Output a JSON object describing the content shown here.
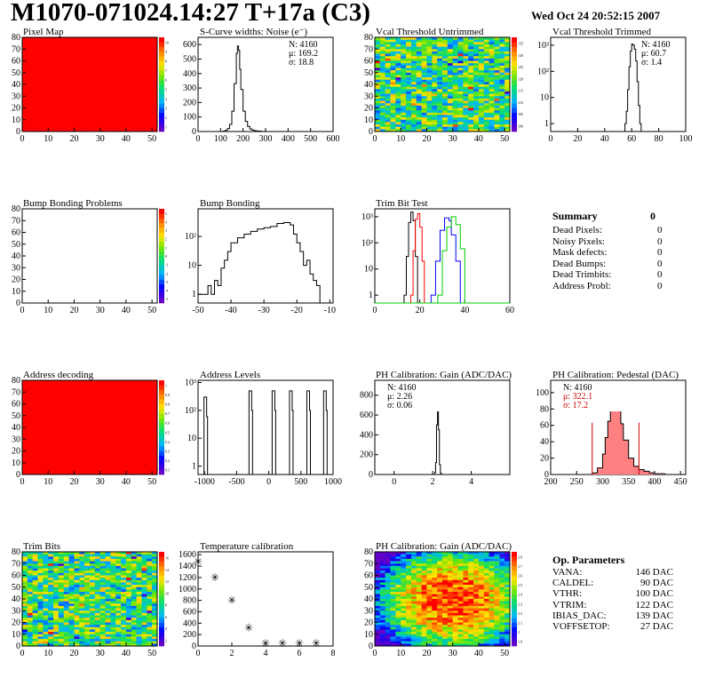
{
  "header": {
    "title": "M1070-071024.14:27 T+17a (C3)",
    "datetime": "Wed Oct 24 20:52:15 2007"
  },
  "colors": {
    "map_red": "#ff0000",
    "histo_line": "#000000",
    "trim_red": "#ff0000",
    "trim_blue": "#0000ff",
    "trim_green": "#00cc00",
    "pedestal_fill": "#ff8080",
    "pedestal_red": "#cc0000"
  },
  "panels": {
    "pixel_map": {
      "title": "Pixel Map"
    },
    "scurve": {
      "title": "S-Curve widths: Noise (e⁻)",
      "stats": [
        "N: 4160",
        "μ: 169.2",
        "σ: 18.8"
      ]
    },
    "vcal_untrimmed": {
      "title": "Vcal Threshold Untrimmed"
    },
    "vcal_trimmed": {
      "title": "Vcal Threshold Trimmed",
      "stats": [
        "N: 4160",
        "μ: 60.7",
        "σ:  1.4"
      ]
    },
    "bump_problems": {
      "title": "Bump Bonding Problems"
    },
    "bump_bonding": {
      "title": "Bump Bonding"
    },
    "trim_bit_test": {
      "title": "Trim Bit Test"
    },
    "address_decoding": {
      "title": "Address decoding"
    },
    "address_levels": {
      "title": "Address Levels"
    },
    "ph_gain": {
      "title": "PH Calibration: Gain (ADC/DAC)",
      "stats": [
        "N: 4160",
        "μ: 2.26",
        "σ: 0.06"
      ]
    },
    "ph_pedestal": {
      "title": "PH Calibration: Pedestal (DAC)",
      "stats": [
        "N: 4160",
        "μ: 322.1",
        "σ: 17.2"
      ]
    },
    "trim_bits": {
      "title": "Trim Bits"
    },
    "temperature": {
      "title": "Temperature calibration"
    },
    "ph_gain_map": {
      "title": "PH Calibration: Gain (ADC/DAC)"
    }
  },
  "summary": {
    "title": "Summary",
    "total": "0",
    "rows": [
      {
        "label": "Dead Pixels:",
        "value": "0"
      },
      {
        "label": "Noisy Pixels:",
        "value": "0"
      },
      {
        "label": "Mask defects:",
        "value": "0"
      },
      {
        "label": "Dead Bumps:",
        "value": "0"
      },
      {
        "label": "Dead Trimbits:",
        "value": "0"
      },
      {
        "label": "Address Probl:",
        "value": "0"
      }
    ]
  },
  "op_parameters": {
    "title": "Op. Parameters",
    "rows": [
      {
        "label": "VANA:",
        "value": "146 DAC"
      },
      {
        "label": "CALDEL:",
        "value": "90 DAC"
      },
      {
        "label": "VTHR:",
        "value": "100 DAC"
      },
      {
        "label": "VTRIM:",
        "value": "122 DAC"
      },
      {
        "label": "IBIAS_DAC:",
        "value": "139 DAC"
      },
      {
        "label": "VOFFSETOP:",
        "value": "27 DAC"
      }
    ]
  },
  "chart_data": [
    {
      "id": "pixel_map",
      "type": "heatmap",
      "title": "Pixel Map",
      "xlim": [
        0,
        52
      ],
      "ylim": [
        0,
        80
      ],
      "xticks": [
        "0",
        "10",
        "20",
        "30",
        "40",
        "50"
      ],
      "yticks": [
        "0",
        "10",
        "20",
        "30",
        "40",
        "50",
        "60",
        "70",
        "80"
      ],
      "uniform_fill": "#ff0000",
      "colorbar_ticks": [
        "1",
        "2",
        "3",
        "4",
        "5",
        "6",
        "7",
        "8",
        "9",
        "10"
      ]
    },
    {
      "id": "scurve",
      "type": "line",
      "title": "S-Curve widths: Noise (e⁻)",
      "xlim": [
        0,
        600
      ],
      "ylim": [
        0,
        650
      ],
      "xticks": [
        "0",
        "100",
        "200",
        "300",
        "400",
        "500",
        "600"
      ],
      "yticks": [
        "0",
        "100",
        "200",
        "300",
        "400",
        "500",
        "600"
      ],
      "x": [
        100,
        110,
        120,
        130,
        140,
        150,
        160,
        170,
        175,
        180,
        185,
        190,
        200,
        210,
        220,
        230,
        240,
        250,
        260,
        280,
        300
      ],
      "y": [
        0,
        2,
        8,
        20,
        50,
        140,
        330,
        540,
        590,
        560,
        430,
        290,
        140,
        70,
        35,
        18,
        10,
        5,
        3,
        1,
        0
      ]
    },
    {
      "id": "vcal_untrimmed",
      "type": "heatmap",
      "title": "Vcal Threshold Untrimmed",
      "xlim": [
        0,
        52
      ],
      "ylim": [
        0,
        80
      ],
      "xticks": [
        "0",
        "10",
        "20",
        "30",
        "40",
        "50"
      ],
      "yticks": [
        "0",
        "10",
        "20",
        "30",
        "40",
        "50",
        "60",
        "70",
        "80"
      ],
      "colorbar_ticks": [
        "100",
        "105",
        "110",
        "115",
        "120",
        "125",
        "130",
        "135"
      ]
    },
    {
      "id": "vcal_trimmed",
      "type": "line",
      "title": "Vcal Threshold Trimmed",
      "yscale": "log",
      "xlim": [
        0,
        100
      ],
      "ylim": [
        0.5,
        2000
      ],
      "xticks": [
        "0",
        "20",
        "40",
        "60",
        "80",
        "100"
      ],
      "yticks": [
        "1",
        "10",
        "10²",
        "10³"
      ],
      "x": [
        55,
        56,
        57,
        58,
        59,
        60,
        61,
        62,
        63,
        64,
        65,
        66,
        67
      ],
      "y": [
        1,
        3,
        20,
        150,
        600,
        1100,
        1000,
        700,
        250,
        40,
        5,
        1,
        0
      ]
    },
    {
      "id": "bump_problems",
      "type": "heatmap",
      "title": "Bump Bonding Problems",
      "xlim": [
        0,
        52
      ],
      "ylim": [
        0,
        80
      ],
      "xticks": [
        "0",
        "10",
        "20",
        "30",
        "40",
        "50"
      ],
      "yticks": [
        "0",
        "10",
        "20",
        "30",
        "40",
        "50",
        "60",
        "70",
        "80"
      ],
      "uniform_fill": "#ffffff",
      "colorbar_ticks": [
        "-5",
        "-4",
        "-3",
        "-2",
        "-1",
        "0",
        "1",
        "2",
        "3",
        "4",
        "5"
      ]
    },
    {
      "id": "bump_bonding",
      "type": "line",
      "title": "Bump Bonding",
      "yscale": "log",
      "xlim": [
        -50,
        -9
      ],
      "ylim": [
        0.5,
        900
      ],
      "xticks": [
        "-50",
        "-40",
        "-30",
        "-20",
        "-10"
      ],
      "yticks": [
        "1",
        "10",
        "10²"
      ],
      "x": [
        -50,
        -48,
        -47,
        -46,
        -45,
        -44,
        -43,
        -42,
        -41,
        -40,
        -38,
        -36,
        -34,
        -32,
        -30,
        -28,
        -26,
        -24,
        -22,
        -21,
        -20,
        -19,
        -18,
        -17,
        -16,
        -15,
        -14,
        -13
      ],
      "y": [
        1,
        1,
        2,
        1,
        3,
        2,
        8,
        15,
        30,
        60,
        90,
        120,
        150,
        180,
        200,
        220,
        280,
        300,
        250,
        120,
        60,
        30,
        10,
        15,
        5,
        3,
        2,
        1
      ]
    },
    {
      "id": "trim_bit_test",
      "type": "line",
      "title": "Trim Bit Test",
      "yscale": "log",
      "xlim": [
        0,
        60
      ],
      "ylim": [
        0.5,
        2000
      ],
      "xticks": [
        "0",
        "20",
        "40",
        "60"
      ],
      "yticks": [
        "1",
        "10",
        "10²",
        "10³"
      ],
      "series": [
        {
          "color": "#000000",
          "x": [
            13,
            14,
            15,
            16,
            17,
            18,
            19
          ],
          "y": [
            1,
            30,
            600,
            1500,
            700,
            30,
            1
          ]
        },
        {
          "color": "#ff0000",
          "x": [
            16,
            17,
            18,
            19,
            20,
            21,
            22
          ],
          "y": [
            1,
            50,
            800,
            1300,
            400,
            20,
            1
          ]
        },
        {
          "color": "#0000ff",
          "x": [
            25,
            27,
            29,
            31,
            33,
            34,
            36,
            38
          ],
          "y": [
            1,
            20,
            300,
            900,
            700,
            200,
            20,
            1
          ]
        },
        {
          "color": "#00cc00",
          "x": [
            28,
            30,
            32,
            34,
            36,
            38,
            40
          ],
          "y": [
            1,
            50,
            400,
            1000,
            500,
            60,
            1
          ]
        }
      ]
    },
    {
      "id": "address_decoding",
      "type": "heatmap",
      "title": "Address decoding",
      "xlim": [
        0,
        52
      ],
      "ylim": [
        0,
        80
      ],
      "xticks": [
        "0",
        "10",
        "20",
        "30",
        "40",
        "50"
      ],
      "yticks": [
        "0",
        "10",
        "20",
        "30",
        "40",
        "50",
        "60",
        "70",
        "80"
      ],
      "uniform_fill": "#ff0000",
      "colorbar_ticks": [
        "0.1",
        "0.2",
        "0.3",
        "0.4",
        "0.5",
        "0.6",
        "0.7",
        "0.8",
        "0.9",
        "1"
      ]
    },
    {
      "id": "address_levels",
      "type": "line",
      "title": "Address Levels",
      "yscale": "log",
      "xlim": [
        -1100,
        1000
      ],
      "ylim": [
        0.5,
        1200
      ],
      "xticks": [
        "-1000",
        "-500",
        "0",
        "500",
        "1000"
      ],
      "yticks": [
        "1",
        "10",
        "10²",
        "10³"
      ],
      "peaks": [
        -980,
        -280,
        80,
        350,
        620,
        880
      ],
      "peak_heights": [
        300,
        500,
        500,
        500,
        500,
        500
      ]
    },
    {
      "id": "ph_gain",
      "type": "line",
      "title": "PH Calibration: Gain (ADC/DAC)",
      "xlim": [
        -1,
        6
      ],
      "ylim": [
        0,
        950
      ],
      "xticks": [
        "0",
        "2",
        "4"
      ],
      "yticks": [
        "0",
        "200",
        "400",
        "600",
        "800"
      ],
      "x": [
        2.05,
        2.1,
        2.15,
        2.2,
        2.25,
        2.3,
        2.35,
        2.4,
        2.45
      ],
      "y": [
        0,
        20,
        120,
        500,
        820,
        450,
        100,
        15,
        0
      ]
    },
    {
      "id": "ph_pedestal",
      "type": "line",
      "title": "PH Calibration: Pedestal (DAC)",
      "xlim": [
        200,
        460
      ],
      "ylim": [
        0,
        115
      ],
      "xticks": [
        "200",
        "250",
        "300",
        "350",
        "400",
        "450"
      ],
      "yticks": [
        "0",
        "20",
        "40",
        "60",
        "80",
        "100"
      ],
      "x": [
        270,
        280,
        290,
        300,
        305,
        310,
        315,
        320,
        325,
        330,
        335,
        340,
        350,
        360,
        370,
        380,
        390,
        400,
        420
      ],
      "y": [
        0,
        2,
        8,
        25,
        45,
        65,
        85,
        97,
        90,
        80,
        62,
        42,
        20,
        10,
        6,
        4,
        2,
        1,
        0
      ],
      "markers": [
        280,
        370
      ]
    },
    {
      "id": "trim_bits",
      "type": "heatmap",
      "title": "Trim Bits",
      "xlim": [
        0,
        52
      ],
      "ylim": [
        0,
        80
      ],
      "xticks": [
        "0",
        "10",
        "20",
        "30",
        "40",
        "50"
      ],
      "yticks": [
        "0",
        "10",
        "20",
        "30",
        "40",
        "50",
        "60",
        "70",
        "80"
      ],
      "colorbar_ticks": [
        "2",
        "4",
        "6",
        "8",
        "10",
        "12",
        "14",
        "16"
      ]
    },
    {
      "id": "temperature",
      "type": "scatter",
      "title": "Temperature calibration",
      "xlim": [
        0,
        8
      ],
      "ylim": [
        0,
        1650
      ],
      "xticks": [
        "0",
        "2",
        "4",
        "6",
        "8"
      ],
      "yticks": [
        "0",
        "200",
        "400",
        "600",
        "800",
        "1000",
        "1200",
        "1400",
        "1600"
      ],
      "x": [
        0,
        1,
        2,
        3,
        4,
        5,
        6,
        7
      ],
      "y": [
        1480,
        1200,
        800,
        320,
        50,
        50,
        50,
        50
      ]
    },
    {
      "id": "ph_gain_map",
      "type": "heatmap",
      "title": "PH Calibration: Gain (ADC/DAC)",
      "xlim": [
        0,
        52
      ],
      "ylim": [
        0,
        80
      ],
      "xticks": [
        "0",
        "10",
        "20",
        "30",
        "40",
        "50"
      ],
      "yticks": [
        "0",
        "10",
        "20",
        "30",
        "40",
        "50",
        "60",
        "70",
        "80"
      ],
      "colorbar_ticks": [
        "1.9",
        "2",
        "2.1",
        "2.2",
        "2.3",
        "2.4",
        "2.5",
        "2.6",
        "2.7",
        "2.8"
      ]
    }
  ]
}
